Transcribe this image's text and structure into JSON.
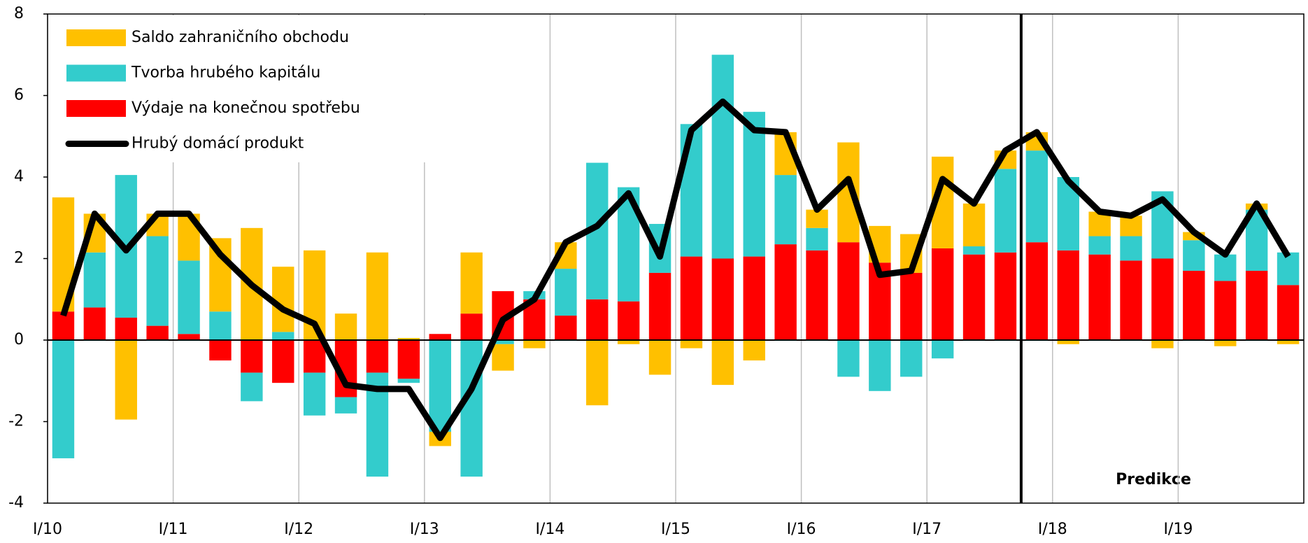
{
  "chart_data": {
    "type": "bar",
    "stacked": true,
    "categories": [
      "I/10",
      null,
      null,
      null,
      "I/11",
      null,
      null,
      null,
      "I/12",
      null,
      null,
      null,
      "I/13",
      null,
      null,
      null,
      "I/14",
      null,
      null,
      null,
      "I/15",
      null,
      null,
      null,
      "I/16",
      null,
      null,
      null,
      "I/17",
      null,
      null,
      null,
      "I/18",
      null,
      null,
      null,
      "I/19",
      null,
      null,
      null
    ],
    "series": [
      {
        "name": "Saldo zahraničního obchodu",
        "type": "bar",
        "color": "#ffc000",
        "values": [
          2.8,
          0.95,
          -1.95,
          0.55,
          1.15,
          1.8,
          2.75,
          1.6,
          2.2,
          0.65,
          2.15,
          0.05,
          -0.35,
          1.5,
          -0.65,
          -0.2,
          0.65,
          -1.6,
          -0.1,
          -0.85,
          -0.2,
          -1.1,
          -0.5,
          1.05,
          0.45,
          2.45,
          0.9,
          0.95,
          2.25,
          1.05,
          0.45,
          0.45,
          -0.1,
          0.6,
          0.5,
          -0.2,
          0.2,
          -0.15,
          0.15,
          -0.1
        ]
      },
      {
        "name": "Tvorba hrubého kapitálu",
        "type": "bar",
        "color": "#33cccc",
        "values": [
          -2.9,
          1.35,
          3.5,
          2.2,
          1.8,
          0.7,
          -0.7,
          0.2,
          -1.05,
          -0.4,
          -2.55,
          -0.1,
          -2.25,
          -3.35,
          -0.1,
          0.2,
          1.15,
          3.35,
          2.8,
          1.2,
          3.25,
          5.0,
          3.55,
          1.7,
          0.55,
          -0.9,
          -1.25,
          -0.9,
          -0.45,
          0.2,
          2.05,
          2.25,
          1.8,
          0.45,
          0.6,
          1.65,
          0.75,
          0.65,
          1.5,
          0.8
        ]
      },
      {
        "name": "Výdaje na konečnou spotřebu",
        "type": "bar",
        "color": "#ff0000",
        "values": [
          0.7,
          0.8,
          0.55,
          0.35,
          0.15,
          -0.5,
          -0.8,
          -1.05,
          -0.8,
          -1.4,
          -0.8,
          -0.95,
          0.15,
          0.65,
          1.2,
          1.0,
          0.6,
          1.0,
          0.95,
          1.65,
          2.05,
          2.0,
          2.05,
          2.35,
          2.2,
          2.4,
          1.9,
          1.65,
          2.25,
          2.1,
          2.15,
          2.4,
          2.2,
          2.1,
          1.95,
          2.0,
          1.7,
          1.45,
          1.7,
          1.35
        ]
      },
      {
        "name": "Hrubý domácí produkt",
        "type": "line",
        "color": "#000000",
        "values": [
          0.6,
          3.1,
          2.2,
          3.1,
          3.1,
          2.1,
          1.35,
          0.75,
          0.4,
          -1.1,
          -1.2,
          -1.2,
          -2.4,
          -1.2,
          0.5,
          1.0,
          2.4,
          2.8,
          3.6,
          2.05,
          5.15,
          5.85,
          5.15,
          5.1,
          3.2,
          3.95,
          1.6,
          1.7,
          3.95,
          3.35,
          4.65,
          5.1,
          3.9,
          3.15,
          3.05,
          3.45,
          2.65,
          2.1,
          3.35,
          2.05
        ]
      }
    ],
    "ylim": [
      -4,
      8
    ],
    "yticks": [
      -4,
      -2,
      0,
      2,
      4,
      6,
      8
    ],
    "annotation": "Predikce",
    "legend": "upper left",
    "grid": true
  }
}
